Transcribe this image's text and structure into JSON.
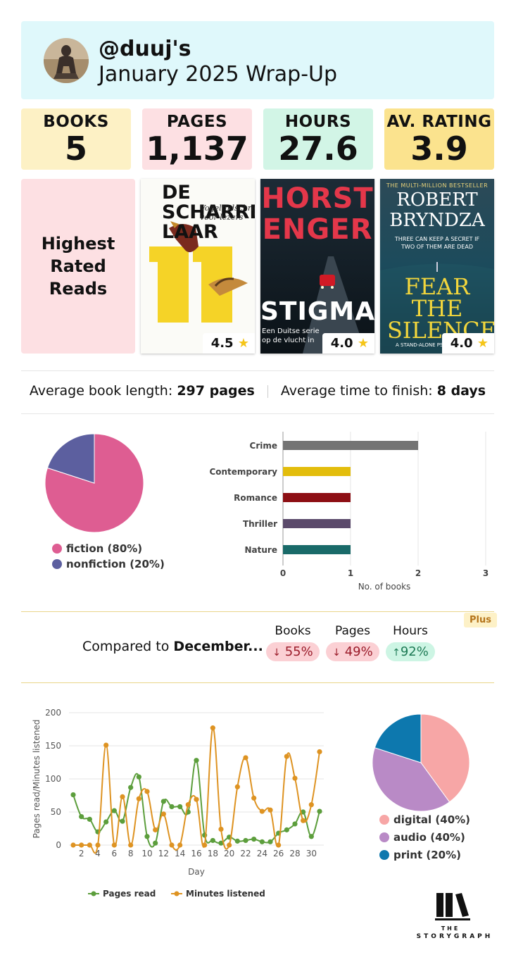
{
  "header": {
    "handle": "@duuj's",
    "subtitle": "January 2025 Wrap-Up"
  },
  "stats": [
    {
      "label": "BOOKS",
      "value": "5",
      "color": "#fdf1c5"
    },
    {
      "label": "PAGES",
      "value": "1,137",
      "color": "#fde0e3"
    },
    {
      "label": "HOURS",
      "value": "27.6",
      "color": "#d2f5e6"
    },
    {
      "label": "AV. RATING",
      "value": "3.9",
      "color": "#fbe38e"
    }
  ],
  "highest_rated": {
    "title": "Highest Rated Reads",
    "books": [
      {
        "cover_title": "DE SCHARRE LAAR",
        "cover_sub": "Vogeltijdschrift voor lezers",
        "number": "11",
        "rating": "4.5"
      },
      {
        "cover_title": "HORST ENGER",
        "cover_sub": "STIGMA",
        "cover_note": "Een Duitse serie op de vlucht in",
        "rating": "4.0"
      },
      {
        "cover_title": "ROBERT BRYNDZA",
        "cover_top": "THE MULTI-MILLION BESTSELLER",
        "cover_sub": "FEAR THE SILENCE",
        "cover_note": "THREE CAN KEEP A SECRET IF TWO OF THEM ARE DEAD",
        "cover_note2": "A STAND-ALONE PSYCH",
        "rating": "4.0"
      }
    ]
  },
  "averages": {
    "length_label": "Average book length:",
    "length_value": "297 pages",
    "time_label": "Average time to finish:",
    "time_value": "8 days"
  },
  "fiction_pie": {
    "slices": [
      {
        "label": "fiction (80%)",
        "value": 80,
        "color": "#de5d92"
      },
      {
        "label": "nonfiction (20%)",
        "value": 20,
        "color": "#5c5f9f"
      }
    ]
  },
  "chart_data": [
    {
      "type": "bar",
      "orientation": "horizontal",
      "categories": [
        "Crime",
        "Contemporary",
        "Romance",
        "Thriller",
        "Nature"
      ],
      "values": [
        2,
        1,
        1,
        1,
        1
      ],
      "colors": [
        "#747474",
        "#e3bd0c",
        "#8d0f14",
        "#5b4a6b",
        "#196a69"
      ],
      "xlabel": "No. of books",
      "xlim": [
        0,
        3
      ],
      "ticks": [
        "0",
        "1",
        "2",
        "3"
      ]
    },
    {
      "type": "line",
      "xlabel": "Day",
      "ylabel": "Pages read/Minutes listened",
      "ylim": [
        0,
        200
      ],
      "yticks": [
        "0",
        "50",
        "100",
        "150",
        "200"
      ],
      "xticks": [
        "2",
        "4",
        "6",
        "8",
        "10",
        "12",
        "14",
        "16",
        "18",
        "20",
        "22",
        "24",
        "26",
        "28",
        "30"
      ],
      "x": [
        1,
        2,
        3,
        4,
        5,
        6,
        7,
        8,
        9,
        10,
        11,
        12,
        13,
        14,
        15,
        16,
        17,
        18,
        19,
        20,
        21,
        22,
        23,
        24,
        25,
        26,
        27,
        28,
        29,
        30,
        31
      ],
      "series": [
        {
          "name": "Pages read",
          "color": "#5c9e3c",
          "values": [
            76,
            43,
            39,
            20,
            35,
            52,
            36,
            87,
            103,
            13,
            3,
            66,
            58,
            58,
            50,
            128,
            15,
            7,
            3,
            12,
            6,
            7,
            9,
            5,
            5,
            18,
            23,
            32,
            50,
            13,
            51
          ]
        },
        {
          "name": "Minutes listened",
          "color": "#de9322",
          "values": [
            0,
            0,
            0,
            0,
            151,
            0,
            73,
            0,
            70,
            81,
            23,
            47,
            0,
            0,
            61,
            69,
            0,
            177,
            24,
            0,
            88,
            132,
            71,
            51,
            53,
            0,
            134,
            101,
            37,
            61,
            141
          ]
        }
      ]
    },
    {
      "type": "pie",
      "slices": [
        {
          "label": "digital (40%)",
          "value": 40,
          "color": "#f7a6a6"
        },
        {
          "label": "audio (40%)",
          "value": 40,
          "color": "#b98ac6"
        },
        {
          "label": "print (20%)",
          "value": 20,
          "color": "#0d78ae"
        }
      ]
    }
  ],
  "compare": {
    "label_prefix": "Compared to",
    "label_month": "December...",
    "plus_badge": "Plus",
    "cols": [
      {
        "head": "Books",
        "arrow": "↓",
        "value": "55%",
        "dir": "down"
      },
      {
        "head": "Pages",
        "arrow": "↓",
        "value": "49%",
        "dir": "down"
      },
      {
        "head": "Hours",
        "arrow": "↑",
        "value": "92%",
        "dir": "up"
      }
    ]
  },
  "logo": {
    "line1": "THE",
    "line2": "STORYGRAPH"
  }
}
